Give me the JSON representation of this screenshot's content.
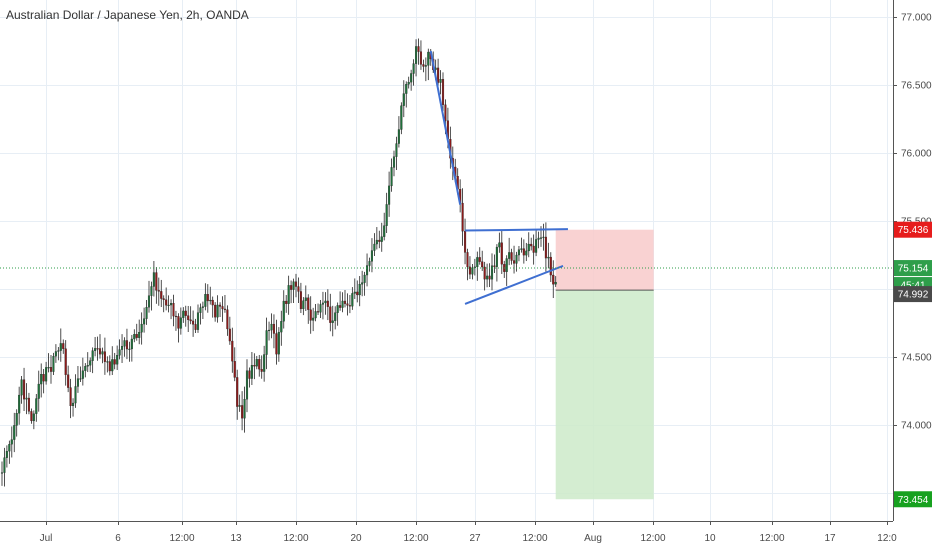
{
  "title": "Australian Dollar / Japanese Yen, 2h, OANDA",
  "colors": {
    "up_candle": "#1f6f3a",
    "down_candle": "#8b1a1a",
    "grid": "#e7eef5",
    "trendline": "#3f6fd1",
    "stop_zone": "#f8caca",
    "target_zone": "#cdeac9",
    "current_price_line": "#2e9e4a",
    "label_stop": "#e61c1c",
    "label_current": "#2e9e4a",
    "label_entry": "#4a4a4a",
    "label_target": "#17a11f"
  },
  "chart_data": {
    "type": "candlestick",
    "ylim": [
      73.3,
      77.1
    ],
    "y_ticks": [
      77.0,
      76.5,
      76.0,
      75.5,
      75.0,
      74.5,
      74.0
    ],
    "y_tick_labels": [
      "77.000",
      "76.500",
      "76.000",
      "75.500",
      "75.000",
      "74.500",
      "74.000"
    ],
    "x_tick_labels": [
      "Jul",
      "6",
      "12:00",
      "13",
      "12:00",
      "20",
      "12:00",
      "27",
      "12:00",
      "Aug",
      "12:00",
      "10",
      "12:00",
      "17",
      "12:0"
    ],
    "grid": true,
    "close_path": [
      [
        0,
        73.7
      ],
      [
        4,
        73.85
      ],
      [
        8,
        74.3
      ],
      [
        12,
        74.0
      ],
      [
        16,
        74.35
      ],
      [
        20,
        74.4
      ],
      [
        24,
        74.65
      ],
      [
        28,
        74.15
      ],
      [
        32,
        74.35
      ],
      [
        36,
        74.5
      ],
      [
        40,
        74.55
      ],
      [
        44,
        74.4
      ],
      [
        48,
        74.55
      ],
      [
        52,
        74.6
      ],
      [
        58,
        74.75
      ],
      [
        62,
        75.1
      ],
      [
        64,
        74.95
      ],
      [
        68,
        74.9
      ],
      [
        72,
        74.7
      ],
      [
        75,
        74.85
      ],
      [
        78,
        74.7
      ],
      [
        82,
        74.9
      ],
      [
        85,
        74.95
      ],
      [
        87,
        74.8
      ],
      [
        90,
        74.9
      ],
      [
        93,
        74.6
      ],
      [
        96,
        74.15
      ],
      [
        98,
        74.05
      ],
      [
        100,
        74.35
      ],
      [
        103,
        74.45
      ],
      [
        106,
        74.4
      ],
      [
        108,
        74.65
      ],
      [
        110,
        74.75
      ],
      [
        112,
        74.55
      ],
      [
        114,
        74.8
      ],
      [
        117,
        75.0
      ],
      [
        120,
        75.05
      ],
      [
        122,
        74.9
      ],
      [
        124,
        74.95
      ],
      [
        126,
        74.8
      ],
      [
        128,
        74.85
      ],
      [
        131,
        74.9
      ],
      [
        134,
        74.8
      ],
      [
        138,
        74.85
      ],
      [
        142,
        74.9
      ],
      [
        146,
        75.0
      ],
      [
        150,
        75.25
      ],
      [
        153,
        75.35
      ],
      [
        156,
        75.45
      ],
      [
        158,
        75.8
      ],
      [
        161,
        76.1
      ],
      [
        164,
        76.45
      ],
      [
        167,
        76.55
      ],
      [
        169,
        76.8
      ],
      [
        171,
        76.65
      ],
      [
        174,
        76.7
      ],
      [
        177,
        76.6
      ],
      [
        179,
        76.5
      ],
      [
        181,
        76.2
      ],
      [
        184,
        75.9
      ],
      [
        187,
        75.6
      ],
      [
        189,
        75.3
      ],
      [
        191,
        75.1
      ],
      [
        193,
        75.15
      ],
      [
        195,
        75.25
      ],
      [
        197,
        75.1
      ],
      [
        199,
        75.05
      ],
      [
        201,
        75.2
      ],
      [
        203,
        75.35
      ],
      [
        205,
        75.1
      ],
      [
        207,
        75.25
      ],
      [
        209,
        75.2
      ],
      [
        211,
        75.3
      ],
      [
        213,
        75.25
      ],
      [
        215,
        75.35
      ],
      [
        217,
        75.3
      ],
      [
        219,
        75.4
      ],
      [
        221,
        75.35
      ],
      [
        223,
        75.2
      ],
      [
        225,
        75.05
      ],
      [
        226,
        75.05
      ]
    ],
    "annotations": {
      "trendlines": [
        {
          "from": {
            "x": 175,
            "y": 76.75
          },
          "to": {
            "x": 187,
            "y": 75.62
          }
        },
        {
          "from": {
            "x": 189,
            "y": 75.43
          },
          "to": {
            "x": 231,
            "y": 75.44
          }
        },
        {
          "from": {
            "x": 189,
            "y": 74.89
          },
          "to": {
            "x": 229,
            "y": 75.17
          }
        }
      ],
      "position": {
        "entry": 74.992,
        "stop": 75.436,
        "target": 73.454,
        "x_start": 226,
        "x_end": 266
      }
    },
    "price_labels": {
      "stop": "75.436",
      "current": "75.154",
      "countdown": "45:41",
      "entry": "74.992",
      "target": "73.454"
    },
    "current_price": 75.154
  }
}
